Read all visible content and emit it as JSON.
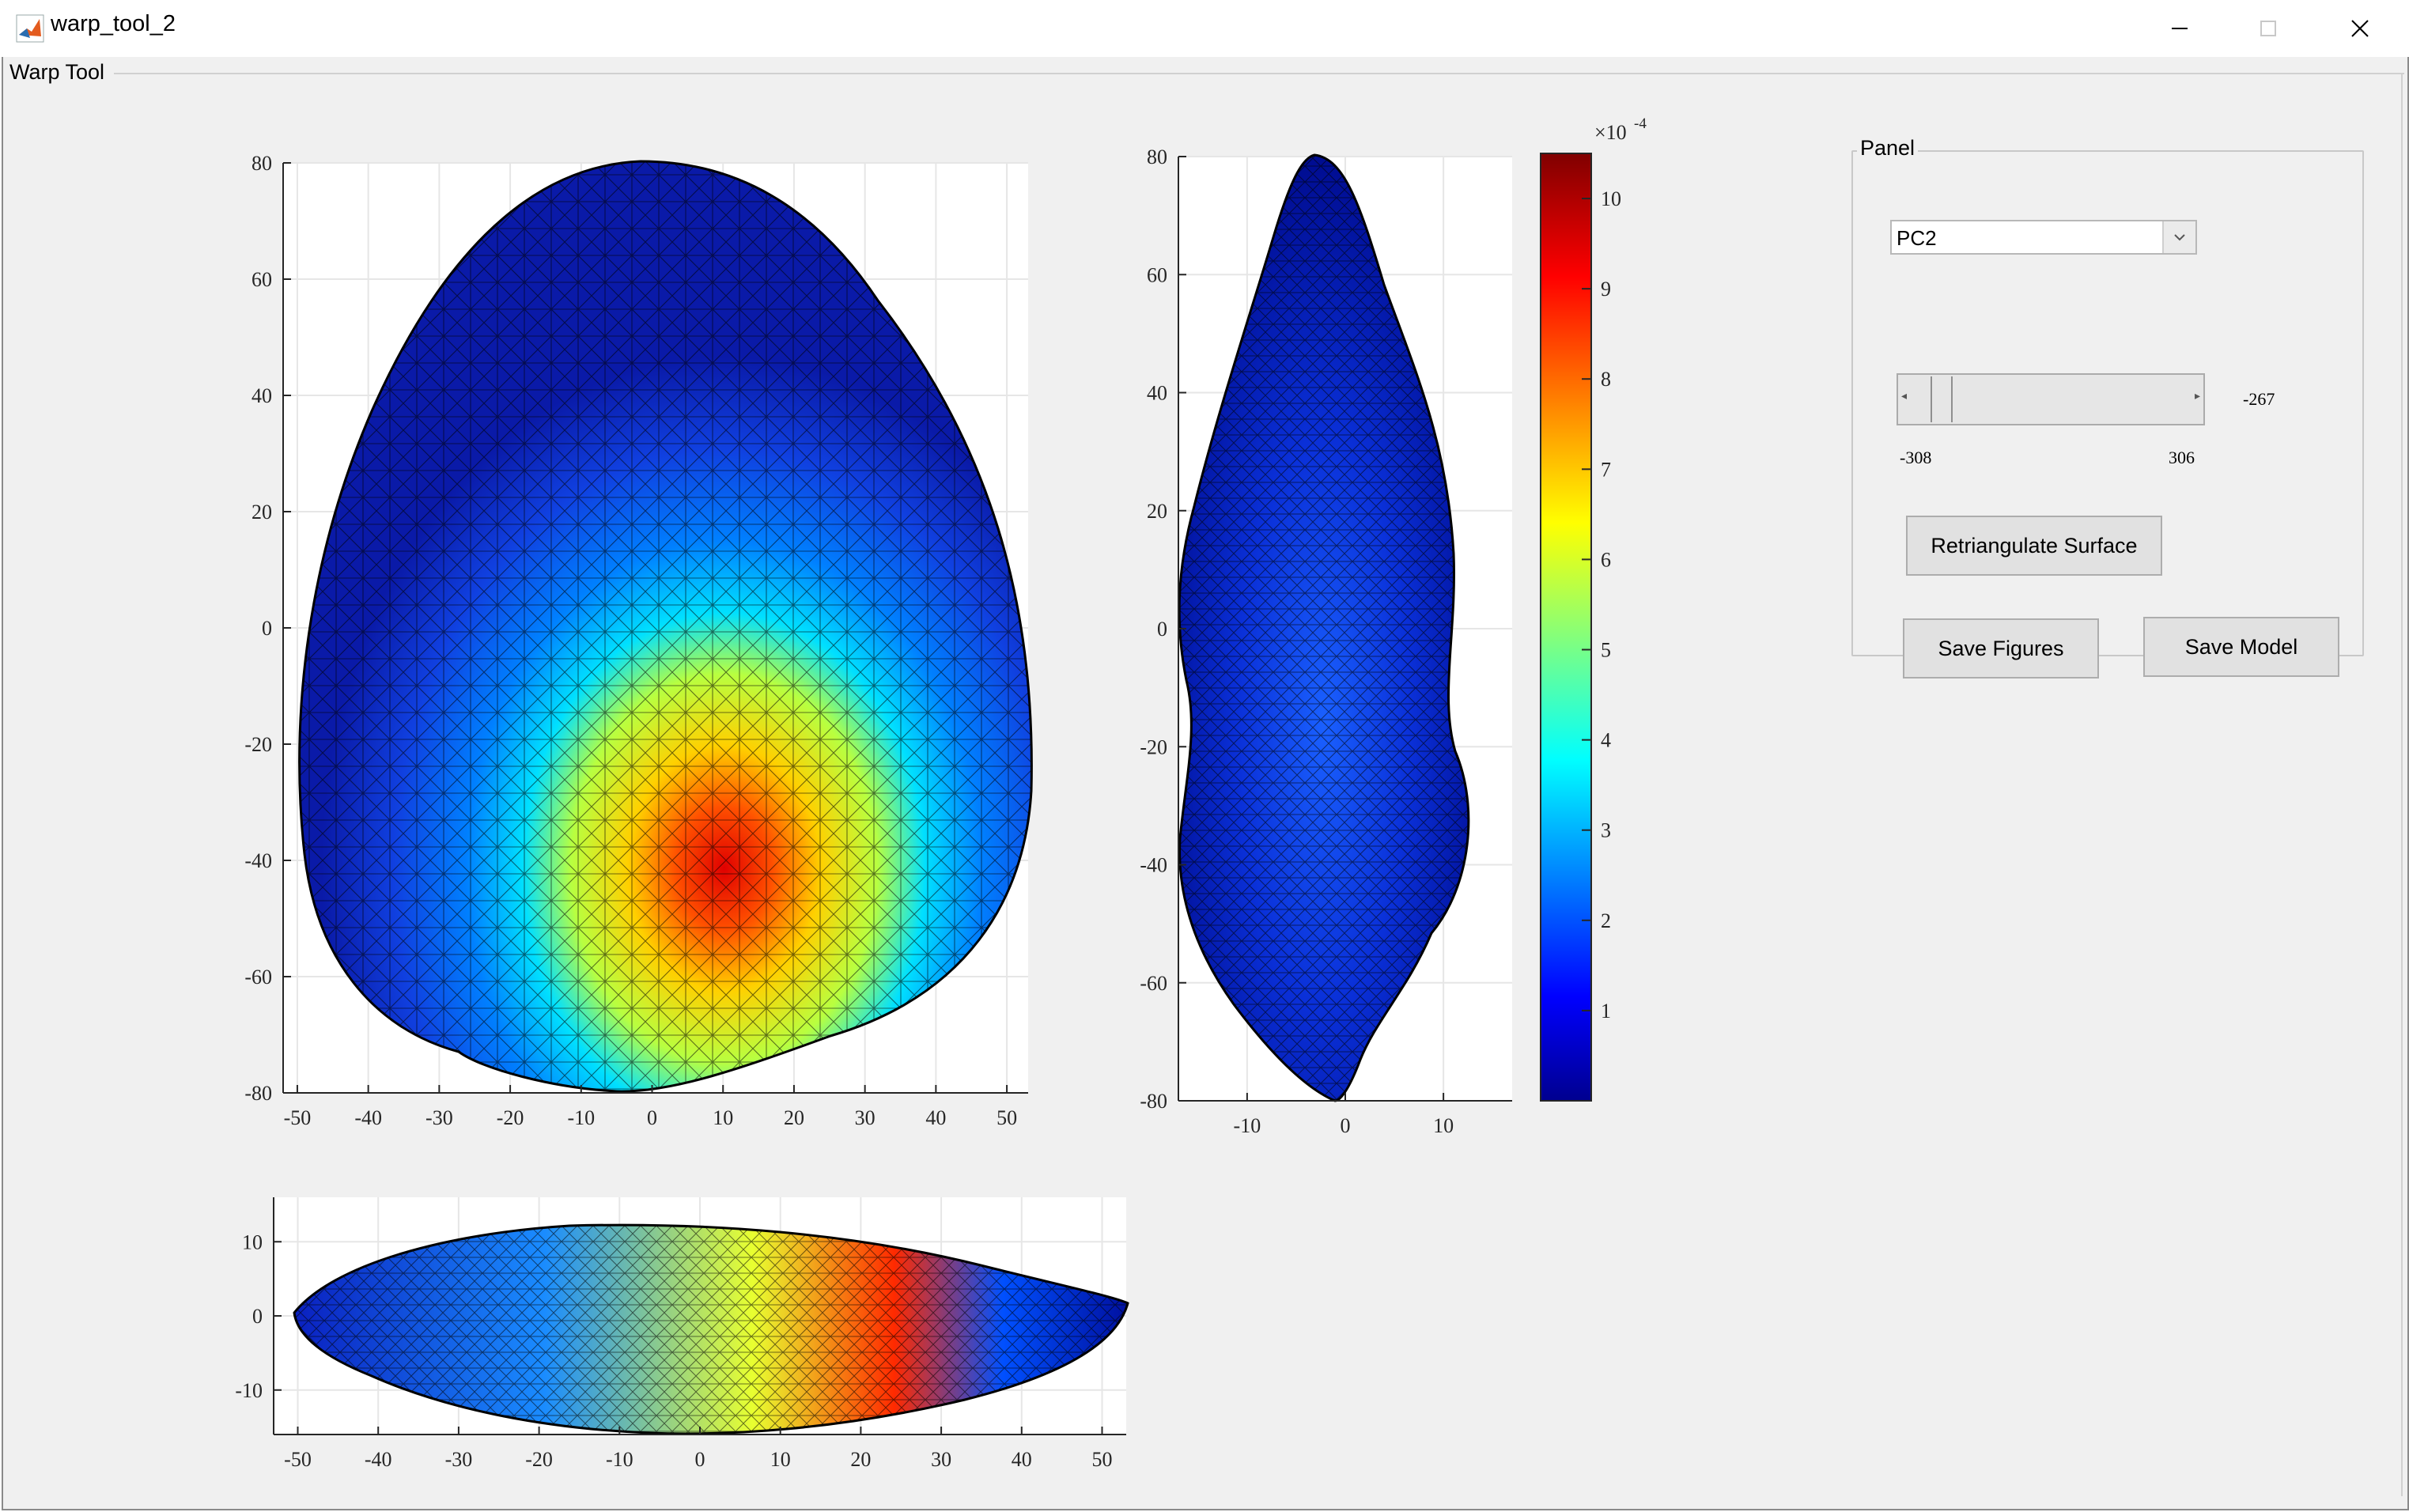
{
  "window": {
    "title": "warp_tool_2",
    "icons": [
      "matlab-icon",
      "minimize-icon",
      "maximize-icon",
      "close-icon"
    ]
  },
  "outer_panel": {
    "title": "Warp Tool"
  },
  "panel": {
    "title": "Panel",
    "dropdown": {
      "selected": "PC2"
    },
    "slider": {
      "min_label": "-308",
      "max_label": "306",
      "value_label": "-267",
      "min": -308,
      "max": 306,
      "value": -267
    },
    "buttons": {
      "retriangulate": "Retriangulate Surface",
      "save_figures": "Save Figures",
      "save_model": "Save Model"
    }
  },
  "chart_data": [
    {
      "type": "surface-mesh",
      "view": "top",
      "xlim": [
        -52,
        53
      ],
      "ylim": [
        -80,
        80
      ],
      "grid": true,
      "xticks": [
        "-50",
        "-40",
        "-30",
        "-20",
        "-10",
        "0",
        "10",
        "20",
        "30",
        "40",
        "50"
      ],
      "yticks": [
        "80",
        "60",
        "40",
        "20",
        "0",
        "-20",
        "-40",
        "-60",
        "-80"
      ],
      "colormap": "jet"
    },
    {
      "type": "surface-mesh",
      "view": "side",
      "xlim": [
        -17,
        17
      ],
      "ylim": [
        -80,
        80
      ],
      "grid": true,
      "xticks": [
        "-10",
        "0",
        "10"
      ],
      "yticks": [
        "80",
        "60",
        "40",
        "20",
        "0",
        "-20",
        "-40",
        "-60",
        "-80"
      ],
      "colormap": "jet"
    },
    {
      "type": "surface-mesh",
      "view": "front",
      "xlim": [
        -53,
        53
      ],
      "ylim": [
        -16,
        16
      ],
      "grid": true,
      "xticks": [
        "-50",
        "-40",
        "-30",
        "-20",
        "-10",
        "0",
        "10",
        "20",
        "30",
        "40",
        "50"
      ],
      "yticks": [
        "10",
        "0",
        "-10"
      ],
      "colormap": "jet"
    },
    {
      "type": "colorbar",
      "exponent_label": "×10",
      "exponent": "-4",
      "range": [
        0,
        10.5
      ],
      "ticks": [
        "10",
        "9",
        "8",
        "7",
        "6",
        "5",
        "4",
        "3",
        "2",
        "1"
      ],
      "colormap": "jet"
    }
  ]
}
